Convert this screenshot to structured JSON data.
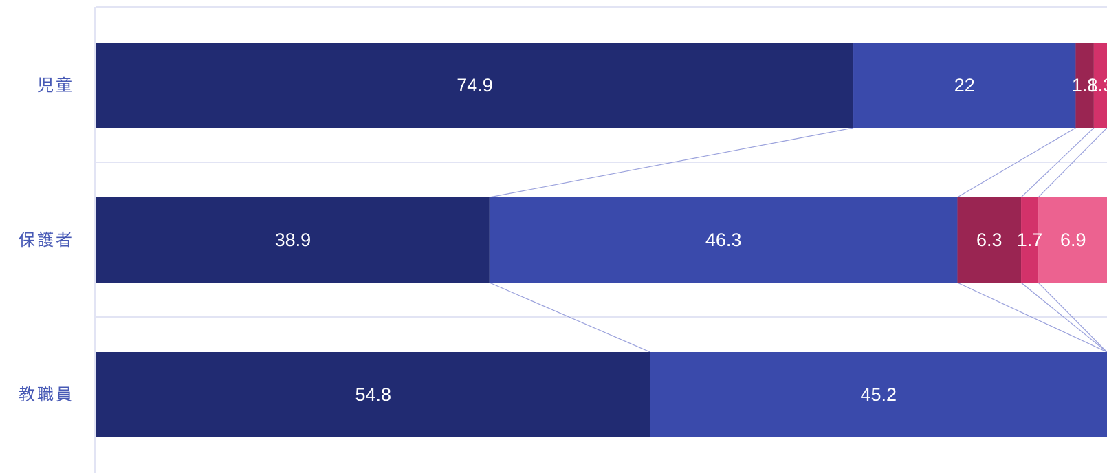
{
  "colors": {
    "category_text": "#4759b5",
    "grid": "#d9dcf1",
    "connector": "#9aa1dc",
    "label_text": "#ffffff",
    "segments": [
      "#212b72",
      "#3a4aab",
      "#9a2552",
      "#d3326a",
      "#ec6290"
    ]
  },
  "chart_data": {
    "type": "bar",
    "orientation": "horizontal",
    "stacked": true,
    "categories": [
      "児童",
      "保護者",
      "教職員"
    ],
    "series": [
      {
        "values": [
          74.9,
          38.9,
          54.8
        ]
      },
      {
        "values": [
          22,
          46.3,
          45.2
        ]
      },
      {
        "values": [
          1.8,
          6.3,
          0
        ]
      },
      {
        "values": [
          1.3,
          1.7,
          0
        ]
      },
      {
        "values": [
          0,
          6.9,
          0
        ]
      }
    ],
    "data_labels": [
      [
        "74.9",
        "22",
        "1.8",
        "1.3",
        ""
      ],
      [
        "38.9",
        "46.3",
        "6.3",
        "1.7",
        "6.9"
      ],
      [
        "54.8",
        "45.2",
        "",
        "",
        ""
      ]
    ],
    "xlim": [
      0,
      100
    ],
    "grid": true,
    "connector_lines": true,
    "legend": "none"
  }
}
